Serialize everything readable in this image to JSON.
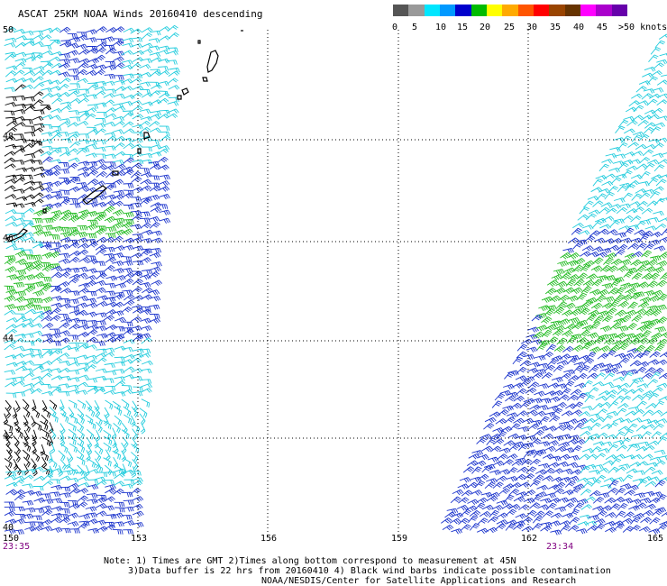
{
  "title": "ASCAT 25KM NOAA Winds 20160410 descending",
  "legend": {
    "colors": [
      "#555555",
      "#999999",
      "#00e6ff",
      "#0099ff",
      "#0000cc",
      "#00bb00",
      "#ffff00",
      "#ffaa00",
      "#ff5500",
      "#ff0000",
      "#994400",
      "#663300",
      "#ff00ff",
      "#aa00cc",
      "#6600aa"
    ],
    "labels": [
      "0",
      "5",
      "10",
      "15",
      "20",
      "25",
      "30",
      "35",
      "40",
      "45",
      ">50 knots"
    ]
  },
  "latitudes": [
    "50",
    "48",
    "46",
    "44",
    "42",
    "40"
  ],
  "longitudes": [
    "150",
    "153",
    "156",
    "159",
    "162",
    "165"
  ],
  "times": [
    "23:35",
    "23:34"
  ],
  "notes": {
    "line1": "Note: 1) Times are GMT 2)Times along bottom correspond to measurement at 45N",
    "line2": "3)Data buffer is 22 hrs from 20160410 4) Black wind barbs indicate possible contamination",
    "line3": "NOAA/NESDIS/Center for Satellite Applications and Research"
  },
  "barb_colors": {
    "black": "#000000",
    "cyan": "#22ccdd",
    "blue": "#1a33cc",
    "green": "#22bb22"
  }
}
